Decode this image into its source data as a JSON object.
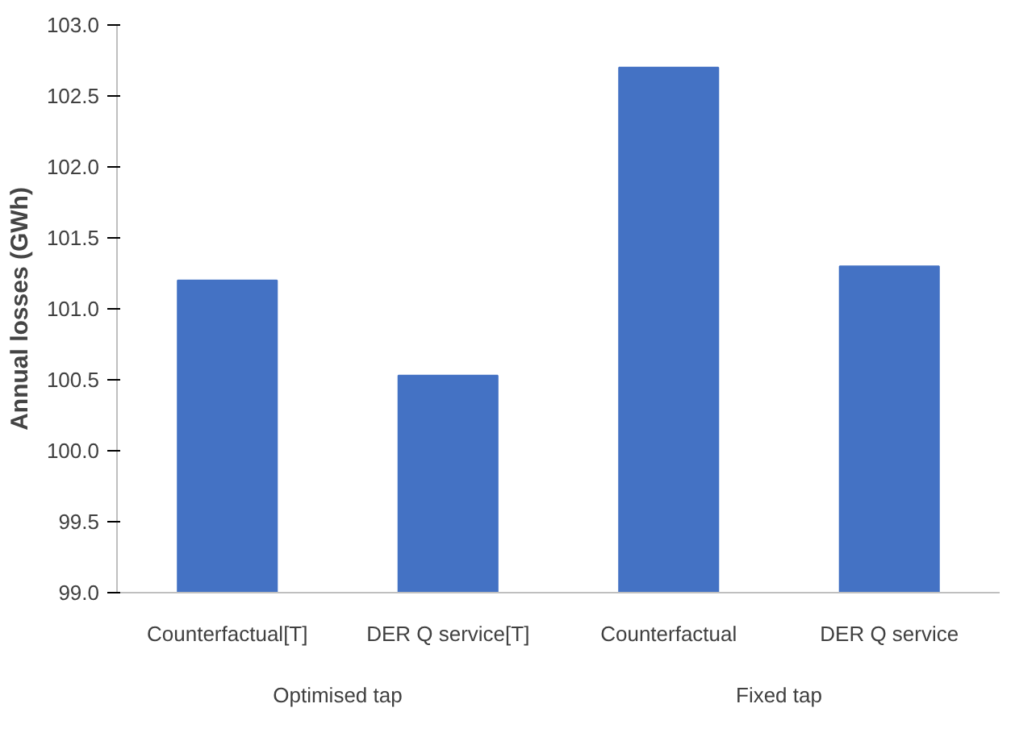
{
  "chart_data": {
    "type": "bar",
    "ylabel": "Annual losses (GWh)",
    "categories": [
      "Counterfactual[T]",
      "DER Q service[T]",
      "Counterfactual",
      "DER Q service"
    ],
    "values": [
      101.2,
      100.53,
      102.7,
      101.3
    ],
    "color": "#4472c4",
    "ylim": [
      99,
      103
    ],
    "yticks": [
      {
        "value": 99,
        "label": "99.0"
      },
      {
        "value": 99.5,
        "label": "99.5"
      },
      {
        "value": 100,
        "label": "100.0"
      },
      {
        "value": 100.5,
        "label": "100.5"
      },
      {
        "value": 101,
        "label": "101.0"
      },
      {
        "value": 101.5,
        "label": "101.5"
      },
      {
        "value": 102,
        "label": "102.0"
      },
      {
        "value": 102.5,
        "label": "102.5"
      },
      {
        "value": 103,
        "label": "103.0"
      }
    ],
    "annotations": [
      "Optimised tap",
      "Fixed tap"
    ],
    "grid": false
  }
}
